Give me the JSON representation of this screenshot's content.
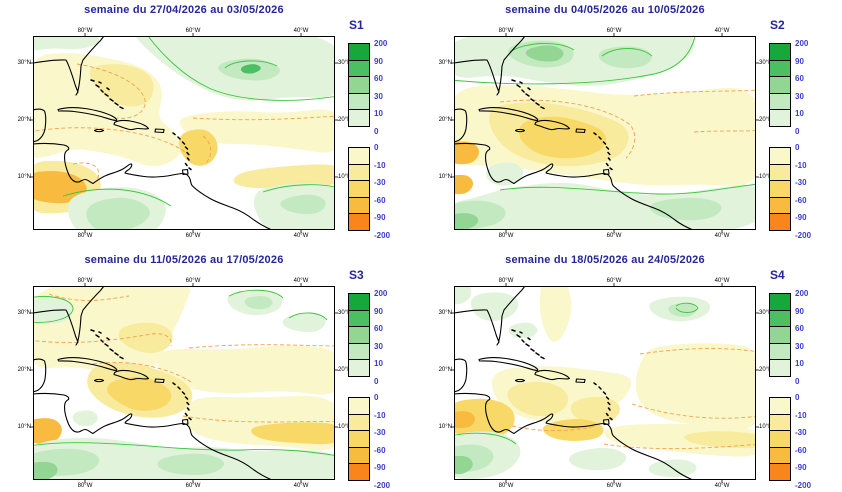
{
  "panels": [
    {
      "label": "S1",
      "title": "semaine du 27/04/2026 au 03/05/2026"
    },
    {
      "label": "S2",
      "title": "semaine du 04/05/2026 au 10/05/2026"
    },
    {
      "label": "S3",
      "title": "semaine du 11/05/2026 au 17/05/2026"
    },
    {
      "label": "S4",
      "title": "semaine du 18/05/2026 au 24/05/2026"
    }
  ],
  "axis": {
    "lon": [
      "80°W",
      "60°W",
      "40°W"
    ],
    "lat": [
      "30°N",
      "20°N",
      "10°N"
    ]
  },
  "colorbar": {
    "positive_labels": [
      "200",
      "90",
      "60",
      "30",
      "10",
      "0"
    ],
    "positive_colors": [
      "#17a83c",
      "#4cbf62",
      "#93d593",
      "#c3e9c0",
      "#e2f3dc"
    ],
    "negative_labels": [
      "0",
      "-10",
      "-30",
      "-60",
      "-90",
      "-200"
    ],
    "negative_colors": [
      "#faf7cb",
      "#f8eb9e",
      "#f8d967",
      "#f9bb3f",
      "#f9861d"
    ]
  },
  "colors": {
    "title_navy": "#26269c",
    "week_label_navy": "#26269c",
    "colorbar_value_blue": "#3b3bd0",
    "contour_positive_green": "#3ec43e",
    "contour_negative_orange": "#f2a24b",
    "coastline_black": "#000000"
  }
}
